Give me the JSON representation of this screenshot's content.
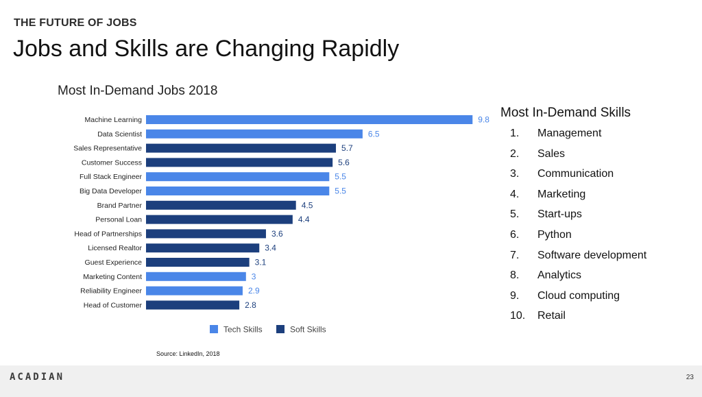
{
  "slide": {
    "kicker": "THE FUTURE OF JOBS",
    "headline": "Jobs and Skills are Changing Rapidly",
    "source": "Source: LinkedIn, 2018",
    "logo": "ACADIAN",
    "page_number": "23"
  },
  "skills": {
    "title": "Most In-Demand Skills",
    "items": [
      {
        "num": "1.",
        "label": "Management"
      },
      {
        "num": "2.",
        "label": "Sales"
      },
      {
        "num": "3.",
        "label": "Communication"
      },
      {
        "num": "4.",
        "label": "Marketing"
      },
      {
        "num": "5.",
        "label": "Start-ups"
      },
      {
        "num": "6.",
        "label": "Python"
      },
      {
        "num": "7.",
        "label": "Software development"
      },
      {
        "num": "8.",
        "label": "Analytics"
      },
      {
        "num": "9.",
        "label": "Cloud computing"
      },
      {
        "num": "10.",
        "label": "Retail"
      }
    ]
  },
  "colors": {
    "tech": "#4a86e8",
    "soft": "#1c3f7d"
  },
  "chart_data": {
    "type": "bar",
    "orientation": "horizontal",
    "title": "Most In-Demand Jobs 2018",
    "xlabel": "",
    "ylabel": "",
    "xlim": [
      0,
      10
    ],
    "grid": false,
    "legend_position": "bottom",
    "legend": [
      {
        "key": "tech",
        "label": "Tech Skills"
      },
      {
        "key": "soft",
        "label": "Soft Skills"
      }
    ],
    "categories": [
      "Machine Learning",
      "Data Scientist",
      "Sales Representative",
      "Customer Success",
      "Full Stack Engineer",
      "Big Data Developer",
      "Brand Partner",
      "Personal Loan",
      "Head of Partnerships",
      "Licensed Realtor",
      "Guest Experience",
      "Marketing Content",
      "Reliability Engineer",
      "Head of Customer"
    ],
    "values": [
      9.8,
      6.5,
      5.7,
      5.6,
      5.5,
      5.5,
      4.5,
      4.4,
      3.6,
      3.4,
      3.1,
      3,
      2.9,
      2.8
    ],
    "value_labels": [
      "9.8",
      "6.5",
      "5.7",
      "5.6",
      "5.5",
      "5.5",
      "4.5",
      "4.4",
      "3.6",
      "3.4",
      "3.1",
      "3",
      "2.9",
      "2.8"
    ],
    "groups": [
      "tech",
      "tech",
      "soft",
      "soft",
      "tech",
      "tech",
      "soft",
      "soft",
      "soft",
      "soft",
      "soft",
      "tech",
      "tech",
      "soft"
    ]
  }
}
